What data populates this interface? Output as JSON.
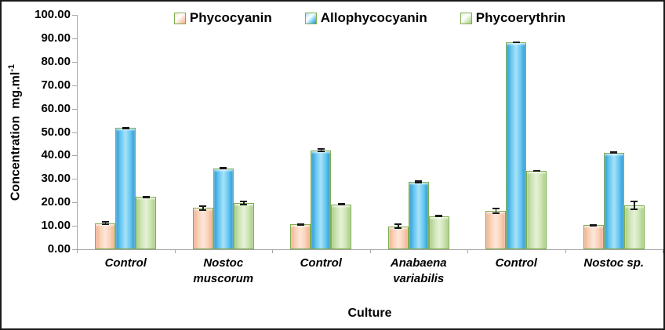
{
  "figure": {
    "ylabel_main": "Concentration  mg.ml",
    "ylabel_sup": "-1"
  },
  "chart_data": {
    "type": "bar",
    "title": "",
    "xlabel": "Culture",
    "ylabel": "Concentration mg.ml⁻¹",
    "ylim": [
      0,
      100
    ],
    "ytick_step": 10,
    "ytick_decimals": 2,
    "grid": false,
    "legend_position": "top-center",
    "categories": [
      "Control",
      "Nostoc\nmuscorum",
      "Control",
      "Anabaena\nvariabilis",
      "Control",
      "Nostoc sp."
    ],
    "series": [
      {
        "name": "Phycocyanin",
        "fill": "#F9CFB5",
        "light": "#FDE8DA",
        "dark": "#EFAF8C",
        "values": [
          11.1,
          17.6,
          10.6,
          9.8,
          16.4,
          10.3
        ],
        "errors": [
          0.8,
          1.2,
          0.5,
          1.2,
          1.3,
          0.5
        ]
      },
      {
        "name": "Allophycocyanin",
        "fill": "#5FC4F0",
        "light": "#A8E2F8",
        "dark": "#2E96CE",
        "values": [
          51.7,
          34.6,
          42.3,
          28.7,
          88.3,
          41.3
        ],
        "errors": [
          0.5,
          0.5,
          0.8,
          0.6,
          0.4,
          0.5
        ]
      },
      {
        "name": "Phycoerythrin",
        "fill": "#C9E2AE",
        "light": "#E6F2D8",
        "dark": "#A6CB82",
        "values": [
          22.3,
          19.6,
          19.2,
          14.2,
          33.4,
          18.6
        ],
        "errors": [
          0.6,
          1.0,
          0.4,
          0.5,
          0.4,
          2.0
        ]
      }
    ],
    "bar_border_color": "#7FAE52",
    "axis_color": "#A6A6A6",
    "error_bar_color": "#1a1a1a",
    "frame_color": "#1a1a1a",
    "background_color": "#FFFFFF"
  }
}
